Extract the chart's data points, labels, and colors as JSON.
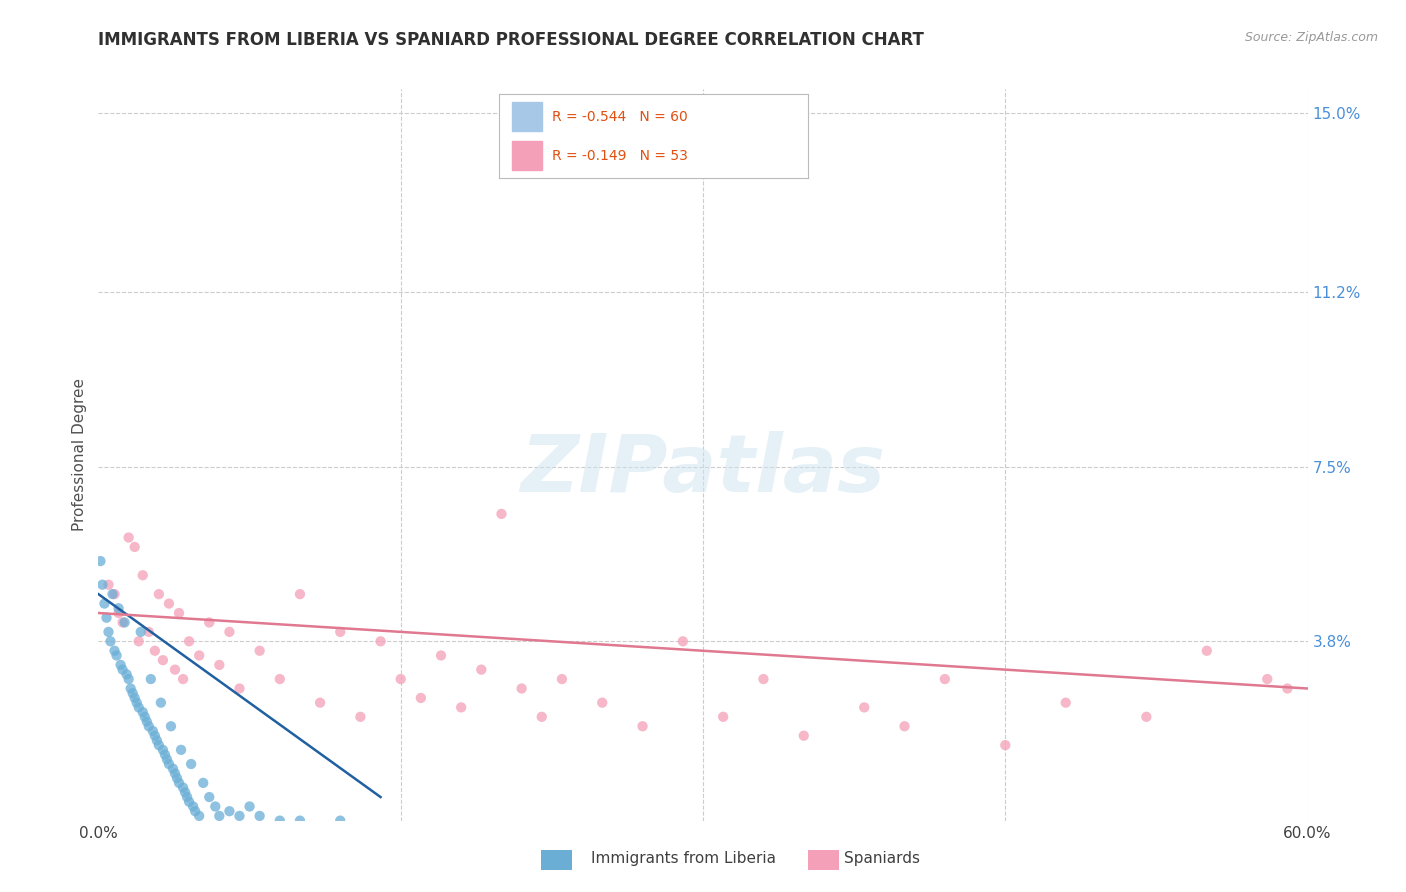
{
  "title": "IMMIGRANTS FROM LIBERIA VS SPANIARD PROFESSIONAL DEGREE CORRELATION CHART",
  "source_text": "Source: ZipAtlas.com",
  "ylabel": "Professional Degree",
  "xlim": [
    0.0,
    0.6
  ],
  "ylim": [
    0.0,
    0.155
  ],
  "ytick_positions": [
    0.038,
    0.075,
    0.112,
    0.15
  ],
  "ytick_labels": [
    "3.8%",
    "7.5%",
    "11.2%",
    "15.0%"
  ],
  "watermark_text": "ZIPatlas",
  "liberia_color": "#6aaed6",
  "spaniard_color": "#f4a0b8",
  "liberia_line_color": "#2060a0",
  "spaniard_line_color": "#e07890",
  "legend_blue_color": "#a8c8e8",
  "legend_pink_color": "#f4a0b8",
  "legend_text_color": "#e05010",
  "liberia_scatter_x": [
    0.001,
    0.002,
    0.003,
    0.004,
    0.005,
    0.006,
    0.007,
    0.008,
    0.009,
    0.01,
    0.011,
    0.012,
    0.013,
    0.014,
    0.015,
    0.016,
    0.017,
    0.018,
    0.019,
    0.02,
    0.021,
    0.022,
    0.023,
    0.024,
    0.025,
    0.026,
    0.027,
    0.028,
    0.029,
    0.03,
    0.031,
    0.032,
    0.033,
    0.034,
    0.035,
    0.036,
    0.037,
    0.038,
    0.039,
    0.04,
    0.041,
    0.042,
    0.043,
    0.044,
    0.045,
    0.046,
    0.047,
    0.048,
    0.05,
    0.052,
    0.055,
    0.058,
    0.06,
    0.065,
    0.07,
    0.075,
    0.08,
    0.09,
    0.1,
    0.12
  ],
  "liberia_scatter_y": [
    0.055,
    0.05,
    0.046,
    0.043,
    0.04,
    0.038,
    0.048,
    0.036,
    0.035,
    0.045,
    0.033,
    0.032,
    0.042,
    0.031,
    0.03,
    0.028,
    0.027,
    0.026,
    0.025,
    0.024,
    0.04,
    0.023,
    0.022,
    0.021,
    0.02,
    0.03,
    0.019,
    0.018,
    0.017,
    0.016,
    0.025,
    0.015,
    0.014,
    0.013,
    0.012,
    0.02,
    0.011,
    0.01,
    0.009,
    0.008,
    0.015,
    0.007,
    0.006,
    0.005,
    0.004,
    0.012,
    0.003,
    0.002,
    0.001,
    0.008,
    0.005,
    0.003,
    0.001,
    0.002,
    0.001,
    0.003,
    0.001,
    0.0,
    0.0,
    0.0
  ],
  "spaniard_scatter_x": [
    0.005,
    0.008,
    0.01,
    0.012,
    0.015,
    0.018,
    0.02,
    0.022,
    0.025,
    0.028,
    0.03,
    0.032,
    0.035,
    0.038,
    0.04,
    0.042,
    0.045,
    0.05,
    0.055,
    0.06,
    0.065,
    0.07,
    0.08,
    0.09,
    0.1,
    0.11,
    0.12,
    0.13,
    0.14,
    0.15,
    0.16,
    0.17,
    0.18,
    0.19,
    0.2,
    0.21,
    0.22,
    0.23,
    0.25,
    0.27,
    0.29,
    0.31,
    0.33,
    0.35,
    0.38,
    0.4,
    0.42,
    0.45,
    0.48,
    0.52,
    0.55,
    0.58,
    0.59
  ],
  "spaniard_scatter_y": [
    0.05,
    0.048,
    0.044,
    0.042,
    0.06,
    0.058,
    0.038,
    0.052,
    0.04,
    0.036,
    0.048,
    0.034,
    0.046,
    0.032,
    0.044,
    0.03,
    0.038,
    0.035,
    0.042,
    0.033,
    0.04,
    0.028,
    0.036,
    0.03,
    0.048,
    0.025,
    0.04,
    0.022,
    0.038,
    0.03,
    0.026,
    0.035,
    0.024,
    0.032,
    0.065,
    0.028,
    0.022,
    0.03,
    0.025,
    0.02,
    0.038,
    0.022,
    0.03,
    0.018,
    0.024,
    0.02,
    0.03,
    0.016,
    0.025,
    0.022,
    0.036,
    0.03,
    0.028
  ],
  "liberia_trend_x": [
    0.0,
    0.14
  ],
  "liberia_trend_y": [
    0.048,
    0.005
  ],
  "spaniard_trend_x": [
    0.0,
    0.6
  ],
  "spaniard_trend_y": [
    0.044,
    0.028
  ],
  "background_color": "#ffffff",
  "grid_color": "#cccccc",
  "title_color": "#303030",
  "axis_label_color": "#505050",
  "tick_color_right": "#4a90d9",
  "tick_color_bottom": "#404040"
}
